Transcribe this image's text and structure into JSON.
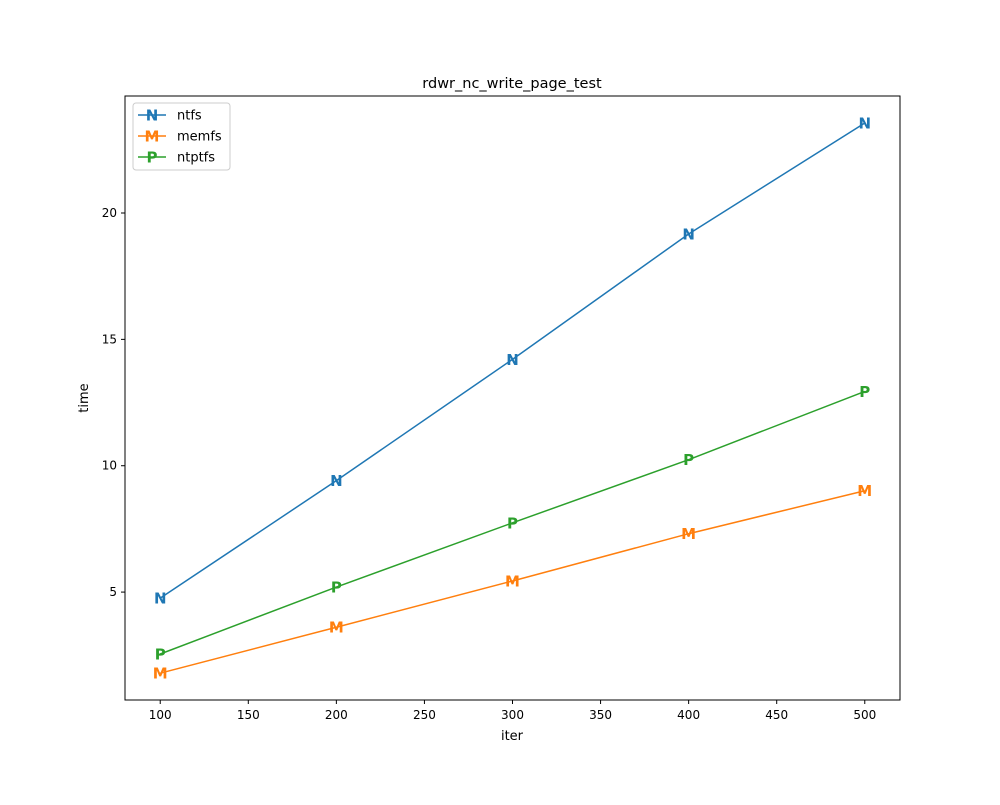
{
  "chart_data": {
    "type": "line",
    "title": "rdwr_nc_write_page_test",
    "xlabel": "iter",
    "ylabel": "time",
    "xlim": [
      80,
      520
    ],
    "ylim": [
      0.73,
      24.63
    ],
    "xticks": [
      100,
      150,
      200,
      250,
      300,
      350,
      400,
      450,
      500
    ],
    "yticks": [
      5,
      10,
      15,
      20
    ],
    "grid": false,
    "legend_placement": "top-left",
    "x": [
      100,
      200,
      300,
      400,
      500
    ],
    "series": [
      {
        "name": "ntfs",
        "marker": "N",
        "color": "#1f77b4",
        "values": [
          4.76,
          9.41,
          14.21,
          19.17,
          23.56
        ]
      },
      {
        "name": "memfs",
        "marker": "M",
        "color": "#ff7f0e",
        "values": [
          1.79,
          3.61,
          5.44,
          7.31,
          9.01
        ]
      },
      {
        "name": "ntptfs",
        "marker": "P",
        "color": "#2ca02c",
        "values": [
          2.55,
          5.2,
          7.74,
          10.24,
          12.94
        ]
      }
    ]
  }
}
